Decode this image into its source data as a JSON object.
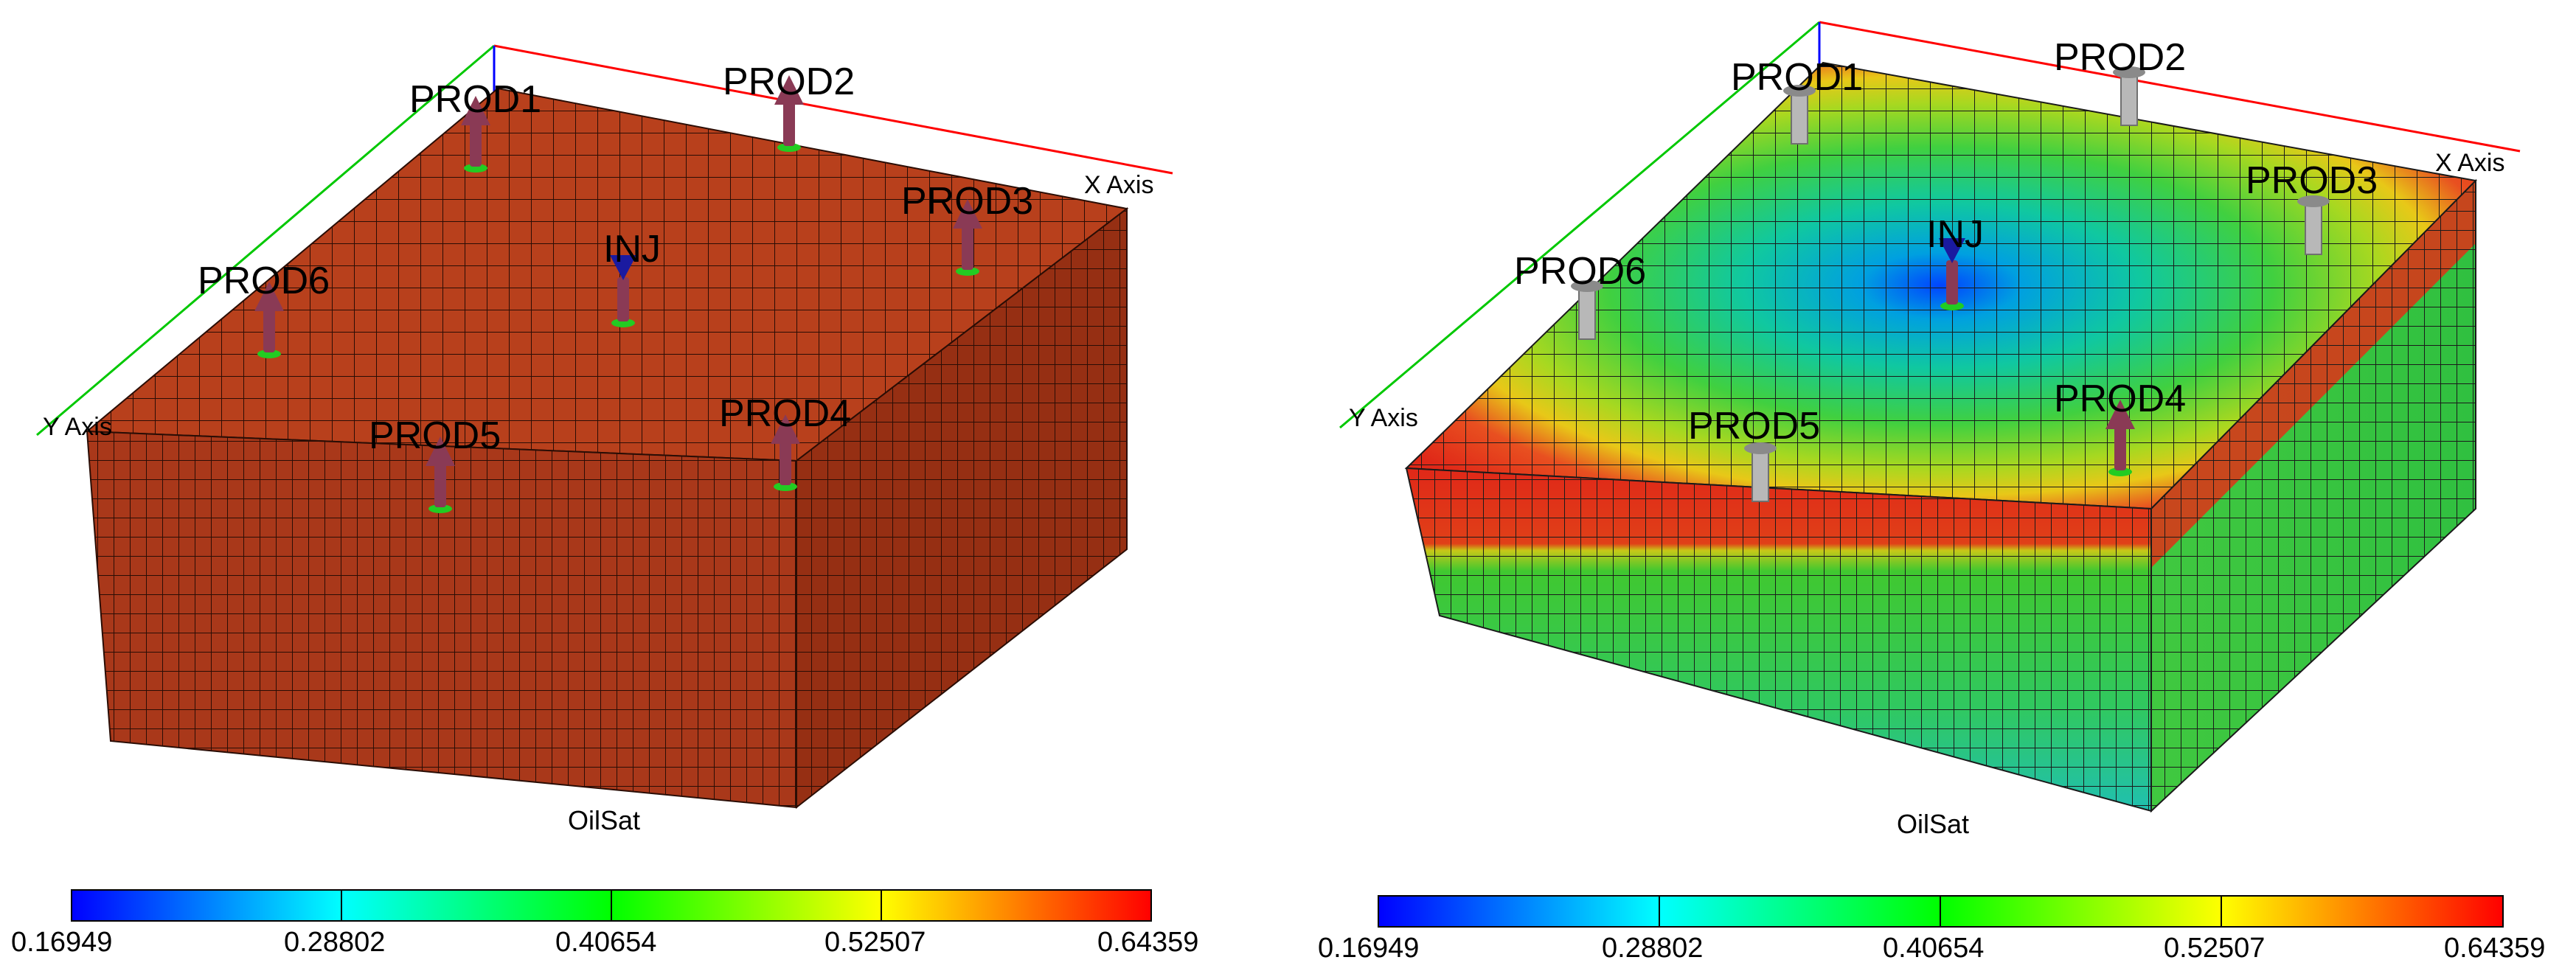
{
  "panels": [
    {
      "id": "left",
      "property_label": "OilSat",
      "x_axis_label": "X Axis",
      "y_axis_label": "Y Axis",
      "wells": [
        {
          "name": "PROD1",
          "type": "producer"
        },
        {
          "name": "PROD2",
          "type": "producer"
        },
        {
          "name": "PROD3",
          "type": "producer"
        },
        {
          "name": "PROD4",
          "type": "producer"
        },
        {
          "name": "PROD5",
          "type": "producer"
        },
        {
          "name": "PROD6",
          "type": "producer"
        },
        {
          "name": "INJ",
          "type": "injector"
        }
      ],
      "state": "initial uniform oil saturation"
    },
    {
      "id": "right",
      "property_label": "OilSat",
      "x_axis_label": "X Axis",
      "y_axis_label": "Y Axis",
      "wells": [
        {
          "name": "PROD1",
          "type": "producer"
        },
        {
          "name": "PROD2",
          "type": "producer"
        },
        {
          "name": "PROD3",
          "type": "producer"
        },
        {
          "name": "PROD4",
          "type": "producer"
        },
        {
          "name": "PROD5",
          "type": "producer"
        },
        {
          "name": "PROD6",
          "type": "producer"
        },
        {
          "name": "INJ",
          "type": "injector"
        }
      ],
      "state": "after water injection"
    }
  ],
  "colorbar": {
    "ticks": [
      "0.16949",
      "0.28802",
      "0.40654",
      "0.52507",
      "0.64359"
    ],
    "colors": [
      "#0000ff",
      "#00ffff",
      "#00ff00",
      "#ffff00",
      "#ff0000"
    ]
  },
  "colors": {
    "initial_cell": "#b8401c",
    "x_axis": "#ff0000",
    "y_axis": "#00c800",
    "z_axis": "#0000ff",
    "producer_arrow": "#8a3a55",
    "injector_arrow": "#1a1aa0",
    "well_base": "#22cc22"
  }
}
